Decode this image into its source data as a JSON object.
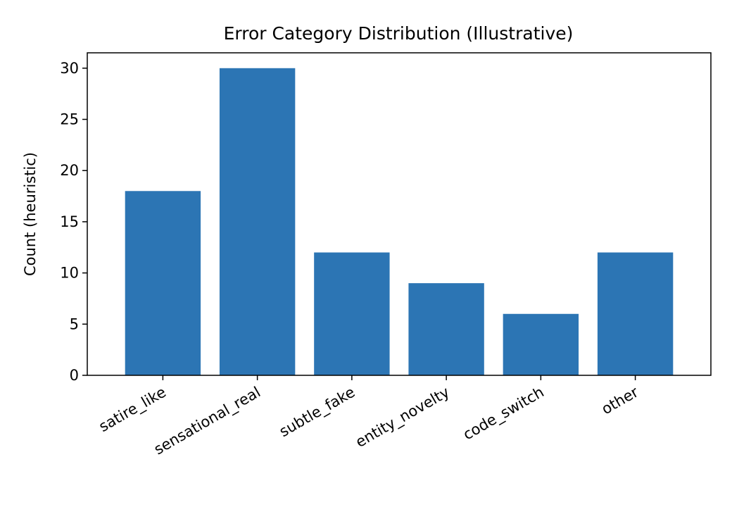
{
  "chart_data": {
    "type": "bar",
    "title": "Error Category Distribution (Illustrative)",
    "xlabel": "",
    "ylabel": "Count (heuristic)",
    "categories": [
      "satire_like",
      "sensational_real",
      "subtle_fake",
      "entity_novelty",
      "code_switch",
      "other"
    ],
    "values": [
      18,
      30,
      12,
      9,
      6,
      12
    ],
    "ylim": [
      0,
      31.5
    ],
    "yticks": [
      "0",
      "5",
      "10",
      "15",
      "20",
      "25",
      "30"
    ],
    "bar_color": "#2c75b4",
    "grid": false,
    "legend": "none"
  }
}
